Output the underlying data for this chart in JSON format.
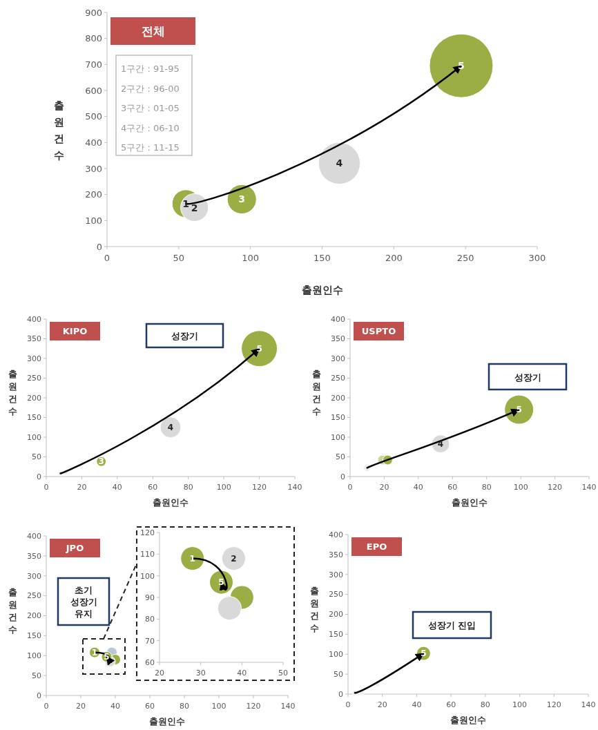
{
  "chart_data": [
    {
      "type": "bubble",
      "title": "전체",
      "xlabel": "출원인수",
      "ylabel": "출원건수",
      "x": [
        55,
        61,
        94,
        162,
        247
      ],
      "values": [
        165,
        150,
        182,
        320,
        695
      ],
      "sizes": [
        0.19,
        0.19,
        0.21,
        0.43,
        1
      ],
      "colors": [
        "#9bad45",
        "#d9d9d9",
        "#9bad45",
        "#d9d9d9",
        "#9bad45"
      ],
      "xlim": [
        0,
        300
      ],
      "xticks": [
        0,
        50,
        100,
        150,
        200,
        250,
        300
      ],
      "ylim": [
        0,
        900
      ],
      "yticks": [
        0,
        100,
        200,
        300,
        400,
        500,
        600,
        700,
        800,
        900
      ],
      "annotations": [
        "1구간 : 91-95",
        "2구간 : 96-00",
        "3구간 : 01-05",
        "4구간 : 06-10",
        "5구간 : 11-15",
        {
          "text": "1",
          "x": 55,
          "y": 165
        },
        {
          "text": "2",
          "x": 61,
          "y": 150
        },
        {
          "text": "3",
          "x": 94,
          "y": 182
        },
        {
          "text": "4",
          "x": 162,
          "y": 320
        },
        {
          "text": "5",
          "x": 247,
          "y": 695
        }
      ]
    },
    {
      "type": "bubble",
      "title": "KIPO",
      "xlabel": "출원인수",
      "ylabel": "출원건수",
      "x": [
        8,
        11,
        31,
        70,
        120
      ],
      "values": [
        8,
        12,
        38,
        125,
        325
      ],
      "sizes": [
        0.02,
        0.02,
        0.07,
        0.33,
        1
      ],
      "colors": [
        "#eeeeee",
        "#e3e3e3",
        "#9bad45",
        "#d9d9d9",
        "#9bad45"
      ],
      "xlim": [
        0,
        140
      ],
      "xticks": [
        0,
        20,
        40,
        60,
        80,
        100,
        120,
        140
      ],
      "ylim": [
        0,
        400
      ],
      "yticks": [
        0,
        50,
        100,
        150,
        200,
        250,
        300,
        350,
        400
      ],
      "annotations": [
        "성장기",
        {
          "text": "3",
          "x": 31,
          "y": 38
        },
        {
          "text": "4",
          "x": 70,
          "y": 125
        },
        {
          "text": "5",
          "x": 120,
          "y": 325
        }
      ]
    },
    {
      "type": "bubble",
      "title": "USPTO",
      "xlabel": "출원인수",
      "ylabel": "출원건수",
      "x": [
        10,
        19,
        22,
        53,
        99
      ],
      "values": [
        22,
        42,
        42,
        83,
        170
      ],
      "sizes": [
        0.06,
        0.11,
        0.11,
        0.38,
        1
      ],
      "colors": [
        "#eeeeee",
        "#c9d39a",
        "#9bad45",
        "#d9d9d9",
        "#9bad45"
      ],
      "xlim": [
        0,
        140
      ],
      "xticks": [
        0,
        20,
        40,
        60,
        80,
        100,
        120,
        140
      ],
      "ylim": [
        0,
        400
      ],
      "yticks": [
        0,
        50,
        100,
        150,
        200,
        250,
        300,
        350,
        400
      ],
      "annotations": [
        "성장기",
        {
          "text": "4",
          "x": 53,
          "y": 83
        },
        {
          "text": "5",
          "x": 99,
          "y": 170
        }
      ]
    },
    {
      "type": "bubble",
      "title": "JPO",
      "xlabel": "출원인수",
      "ylabel": "출원건수",
      "x": [
        28,
        38,
        40,
        37,
        35
      ],
      "values": [
        108,
        108,
        90,
        85,
        97
      ],
      "sizes": [
        1,
        1,
        1,
        1,
        1
      ],
      "colors": [
        "#9bad45",
        "#b8c8d8",
        "#9bad45",
        "#d9d9d9",
        "#9bad45"
      ],
      "xlim": [
        0,
        140
      ],
      "xticks": [
        0,
        20,
        40,
        60,
        80,
        100,
        120,
        140
      ],
      "ylim": [
        0,
        400
      ],
      "yticks": [
        0,
        50,
        100,
        150,
        200,
        250,
        300,
        350,
        400
      ],
      "annotations": [
        "초기\n성장기\n유지",
        {
          "text": "1",
          "x": 28,
          "y": 108
        },
        {
          "text": "5",
          "x": 35,
          "y": 97
        }
      ]
    },
    {
      "type": "bubble",
      "x": [
        28,
        38,
        40,
        37,
        35
      ],
      "values": [
        108,
        108,
        90,
        85,
        97
      ],
      "sizes": [
        1,
        1,
        1,
        1,
        1
      ],
      "colors": [
        "#9bad45",
        "#d9d9d9",
        "#9bad45",
        "#d9d9d9",
        "#9bad45"
      ],
      "xlim": [
        20,
        50
      ],
      "xticks": [
        20,
        30,
        40,
        50
      ],
      "ylim": [
        60,
        120
      ],
      "yticks": [
        60,
        70,
        80,
        90,
        100,
        110,
        120
      ],
      "annotations": [
        {
          "text": "1",
          "x": 28,
          "y": 108
        },
        {
          "text": "2",
          "x": 38,
          "y": 108
        },
        {
          "text": "5",
          "x": 35,
          "y": 97
        }
      ]
    },
    {
      "type": "bubble",
      "title": "EPO",
      "xlabel": "출원인수",
      "ylabel": "출원건수",
      "x": [
        4,
        6,
        8,
        17,
        44
      ],
      "values": [
        3,
        3,
        4,
        25,
        102
      ],
      "sizes": [
        0.16,
        0.16,
        0.16,
        0.16,
        1
      ],
      "colors": [
        "#eeeeee",
        "#eeeeee",
        "#eeeeee",
        "#eeeeee",
        "#9bad45"
      ],
      "xlim": [
        0,
        140
      ],
      "xticks": [
        0,
        20,
        40,
        60,
        80,
        100,
        120,
        140
      ],
      "ylim": [
        0,
        400
      ],
      "yticks": [
        0,
        50,
        100,
        150,
        200,
        250,
        300,
        350,
        400
      ],
      "annotations": [
        "성장기 진입",
        {
          "text": "5",
          "x": 44,
          "y": 102
        }
      ]
    }
  ]
}
